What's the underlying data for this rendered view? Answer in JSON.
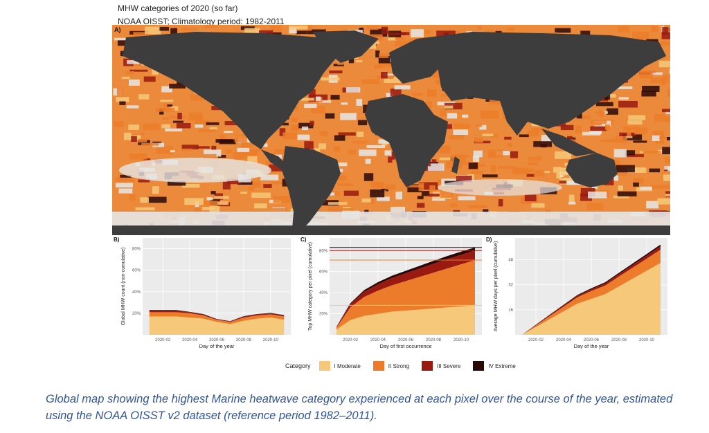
{
  "header": {
    "title": "MHW categories of 2020 (so far)",
    "subtitle": "NOAA OISST; Climatology period: 1982-2011"
  },
  "colors": {
    "moderate": "#f6c97a",
    "strong": "#ec7c2a",
    "severe": "#9a1a12",
    "extreme": "#2b0808",
    "land": "#3d3d3d",
    "no_mhw": "#e6e6e6",
    "panel_bg": "#ebebeb"
  },
  "map_panel": {
    "label": "A)"
  },
  "legend": {
    "title": "Category",
    "items": [
      {
        "label": "I Moderate",
        "color": "#f6c97a"
      },
      {
        "label": "II Strong",
        "color": "#ec7c2a"
      },
      {
        "label": "III Severe",
        "color": "#9a1a12"
      },
      {
        "label": "IV Extreme",
        "color": "#2b0808"
      }
    ]
  },
  "caption": "Global map showing the highest Marine heatwave category experienced at each pixel over the course of the year, estimated using the NOAA OISST v2 dataset (reference period 1982–2011).",
  "chart_data": [
    {
      "type": "area",
      "panel": "B)",
      "xlabel": "Day of the year",
      "ylabel": "Global MHW count (non-cumulative)",
      "x_ticks": [
        "2020-02",
        "2020-04",
        "2020-06",
        "2020-08",
        "2020-10"
      ],
      "y_ticks": [
        "20%",
        "40%",
        "60%",
        "80%"
      ],
      "ylim": [
        0,
        90
      ],
      "x_months": [
        1,
        2,
        3,
        4,
        5,
        6,
        7,
        8,
        9,
        10,
        11
      ],
      "series": [
        {
          "name": "I Moderate",
          "values": [
            17,
            17,
            17,
            16,
            15,
            12,
            10,
            13,
            15,
            16,
            14
          ]
        },
        {
          "name": "II Strong",
          "values": [
            4,
            4,
            4,
            4,
            3,
            2,
            2,
            3,
            3,
            3,
            3
          ]
        },
        {
          "name": "III Severe",
          "values": [
            1.5,
            1.5,
            1.5,
            1,
            1,
            0.5,
            0.5,
            1,
            1,
            1,
            1
          ]
        },
        {
          "name": "IV Extreme",
          "values": [
            0.5,
            0.5,
            0.5,
            0.3,
            0.3,
            0.2,
            0.2,
            0.3,
            0.3,
            0.3,
            0.3
          ]
        }
      ]
    },
    {
      "type": "area",
      "panel": "C)",
      "xlabel": "Day of first occurrence",
      "ylabel": "Top MHW category per pixel (cumulative)",
      "x_ticks": [
        "2020-02",
        "2020-04",
        "2020-06",
        "2020-08",
        "2020-10"
      ],
      "y_ticks": [
        "20%",
        "40%",
        "60%",
        "80%"
      ],
      "ylim": [
        0,
        92
      ],
      "x_months": [
        1,
        2,
        3,
        4,
        5,
        6,
        7,
        8,
        9,
        10,
        11
      ],
      "series": [
        {
          "name": "I Moderate",
          "values": [
            5,
            14,
            18,
            20,
            22,
            23,
            24,
            25,
            26,
            27,
            28
          ]
        },
        {
          "name": "II Strong",
          "values": [
            2,
            12,
            18,
            22,
            25,
            28,
            31,
            34,
            37,
            40,
            43
          ]
        },
        {
          "name": "III Severe",
          "values": [
            0.5,
            3,
            5,
            6,
            7,
            7.5,
            8,
            8.5,
            9,
            9,
            9
          ]
        },
        {
          "name": "IV Extreme",
          "values": [
            0.2,
            1,
            1.5,
            2,
            2,
            2.3,
            2.5,
            2.7,
            2.8,
            3,
            3
          ]
        }
      ],
      "reference_lines": [
        {
          "y": 28,
          "color": "#f6c97a"
        },
        {
          "y": 71,
          "color": "#ec7c2a"
        },
        {
          "y": 80,
          "color": "#9a1a12"
        },
        {
          "y": 83,
          "color": "#2b0808"
        }
      ]
    },
    {
      "type": "area",
      "panel": "D)",
      "xlabel": "Day of the year",
      "ylabel": "Average MHW days per pixel (cumulative)",
      "x_ticks": [
        "2020-02",
        "2020-04",
        "2020-06",
        "2020-08",
        "2020-10"
      ],
      "y_ticks": [
        "16",
        "32",
        "48"
      ],
      "ylim": [
        0,
        62
      ],
      "x_months": [
        1,
        2,
        3,
        4,
        5,
        6,
        7,
        8,
        9,
        10,
        11
      ],
      "series": [
        {
          "name": "I Moderate",
          "values": [
            0,
            5,
            10,
            15,
            20,
            23,
            26,
            31,
            36,
            41,
            46
          ]
        },
        {
          "name": "II Strong",
          "values": [
            0,
            1,
            2,
            3,
            4,
            5,
            5.5,
            6.3,
            7,
            7.7,
            8.5
          ]
        },
        {
          "name": "III Severe",
          "values": [
            0,
            0.3,
            0.6,
            0.8,
            1,
            1.2,
            1.4,
            1.6,
            1.8,
            2,
            2.2
          ]
        },
        {
          "name": "IV Extreme",
          "values": [
            0,
            0.2,
            0.3,
            0.4,
            0.5,
            0.6,
            0.7,
            0.8,
            0.9,
            1,
            1.1
          ]
        }
      ]
    }
  ]
}
